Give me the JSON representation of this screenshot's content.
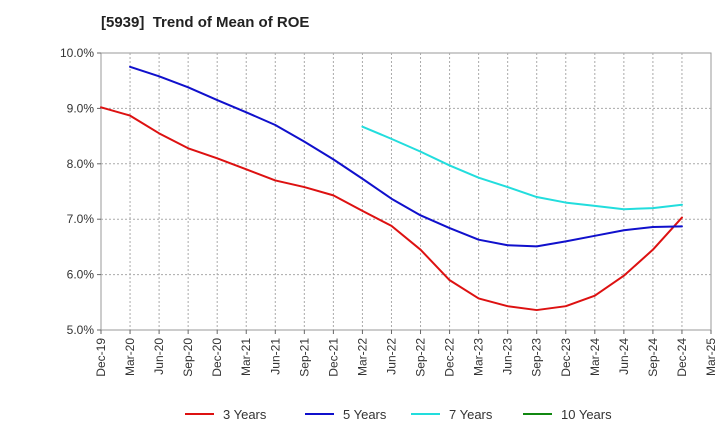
{
  "chart_data": {
    "type": "line",
    "title": "[5939]  Trend of Mean of ROE",
    "xlabel": "",
    "ylabel": "",
    "x_ticks": [
      "Dec-19",
      "Mar-20",
      "Jun-20",
      "Sep-20",
      "Dec-20",
      "Mar-21",
      "Jun-21",
      "Sep-21",
      "Dec-21",
      "Mar-22",
      "Jun-22",
      "Sep-22",
      "Dec-22",
      "Mar-23",
      "Jun-23",
      "Sep-23",
      "Dec-23",
      "Mar-24",
      "Jun-24",
      "Sep-24",
      "Dec-24",
      "Mar-25"
    ],
    "y_ticks": [
      "5.0%",
      "6.0%",
      "7.0%",
      "8.0%",
      "9.0%",
      "10.0%"
    ],
    "ylim": [
      5.0,
      10.0
    ],
    "grid": true,
    "legend_position": "bottom",
    "series": [
      {
        "name": "3 Years",
        "color": "#dd1111",
        "points": [
          [
            "Dec-19",
            9.02
          ],
          [
            "Mar-20",
            8.87
          ],
          [
            "Jun-20",
            8.55
          ],
          [
            "Sep-20",
            8.28
          ],
          [
            "Dec-20",
            8.1
          ],
          [
            "Mar-21",
            7.9
          ],
          [
            "Jun-21",
            7.7
          ],
          [
            "Sep-21",
            7.58
          ],
          [
            "Dec-21",
            7.43
          ],
          [
            "Mar-22",
            7.15
          ],
          [
            "Jun-22",
            6.88
          ],
          [
            "Sep-22",
            6.45
          ],
          [
            "Dec-22",
            5.9
          ],
          [
            "Mar-23",
            5.57
          ],
          [
            "Jun-23",
            5.43
          ],
          [
            "Sep-23",
            5.36
          ],
          [
            "Dec-23",
            5.43
          ],
          [
            "Mar-24",
            5.62
          ],
          [
            "Jun-24",
            5.98
          ],
          [
            "Sep-24",
            6.45
          ],
          [
            "Dec-24",
            7.03
          ]
        ]
      },
      {
        "name": "5 Years",
        "color": "#1010cc",
        "points": [
          [
            "Mar-20",
            9.75
          ],
          [
            "Jun-20",
            9.58
          ],
          [
            "Sep-20",
            9.38
          ],
          [
            "Dec-20",
            9.15
          ],
          [
            "Mar-21",
            8.93
          ],
          [
            "Jun-21",
            8.7
          ],
          [
            "Sep-21",
            8.4
          ],
          [
            "Dec-21",
            8.08
          ],
          [
            "Mar-22",
            7.73
          ],
          [
            "Jun-22",
            7.37
          ],
          [
            "Sep-22",
            7.07
          ],
          [
            "Dec-22",
            6.84
          ],
          [
            "Mar-23",
            6.63
          ],
          [
            "Jun-23",
            6.53
          ],
          [
            "Sep-23",
            6.51
          ],
          [
            "Dec-23",
            6.6
          ],
          [
            "Mar-24",
            6.7
          ],
          [
            "Jun-24",
            6.8
          ],
          [
            "Sep-24",
            6.86
          ],
          [
            "Dec-24",
            6.87
          ]
        ]
      },
      {
        "name": "7 Years",
        "color": "#22dddd",
        "points": [
          [
            "Mar-22",
            8.67
          ],
          [
            "Jun-22",
            8.45
          ],
          [
            "Sep-22",
            8.22
          ],
          [
            "Dec-22",
            7.97
          ],
          [
            "Mar-23",
            7.75
          ],
          [
            "Jun-23",
            7.58
          ],
          [
            "Sep-23",
            7.4
          ],
          [
            "Dec-23",
            7.3
          ],
          [
            "Mar-24",
            7.24
          ],
          [
            "Jun-24",
            7.18
          ],
          [
            "Sep-24",
            7.2
          ],
          [
            "Dec-24",
            7.26
          ]
        ]
      },
      {
        "name": "10 Years",
        "color": "#118811",
        "points": []
      }
    ]
  }
}
